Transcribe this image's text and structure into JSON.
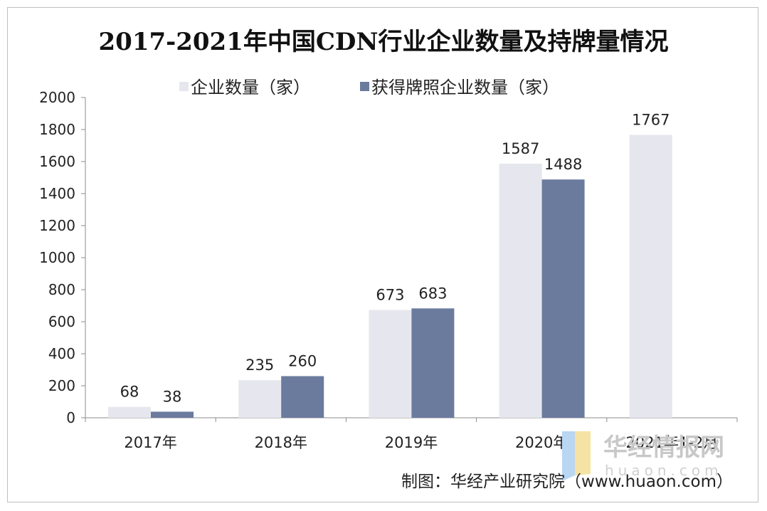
{
  "chart_data": {
    "type": "bar",
    "title": "2017-2021年中国CDN行业企业数量及持牌量情况",
    "categories": [
      "2017年",
      "2018年",
      "2019年",
      "2020年",
      "2021年1-2月"
    ],
    "series": [
      {
        "name": "企业数量（家）",
        "values": [
          68,
          235,
          673,
          1587,
          1767
        ],
        "color": "#e6e7ee"
      },
      {
        "name": "获得牌照企业数量（家）",
        "values": [
          38,
          260,
          683,
          1488,
          null
        ],
        "color": "#6b7b9e"
      }
    ],
    "ylim": [
      0,
      2000
    ],
    "yticks": [
      0,
      200,
      400,
      600,
      800,
      1000,
      1200,
      1400,
      1600,
      1800,
      2000
    ],
    "legend_position": "top",
    "grid": false
  },
  "source": "制图：华经产业研究院（www.huaon.com）",
  "watermark": {
    "text": "华经情报网",
    "sub": "huaon.com"
  }
}
